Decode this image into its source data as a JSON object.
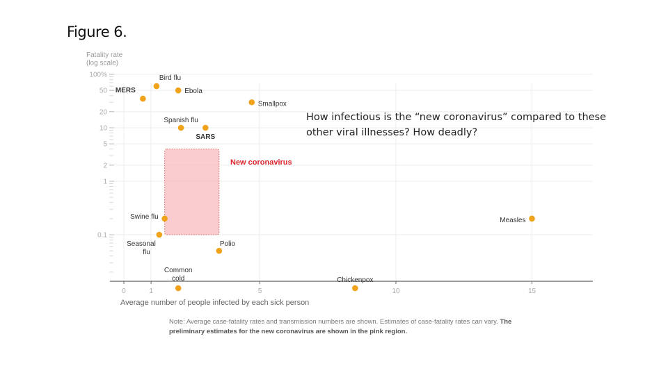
{
  "slide": {
    "title": "Figure 6.",
    "question": "How infectious is the “new coronavirus” compared to these other viral illnesses?  How deadly?"
  },
  "note": {
    "regular": "Note: Average case-fatality rates and transmission numbers are shown. Estimates of case-fatality rates can vary.",
    "bold": "The preliminary estimates for the new coronavirus are shown in the pink region."
  },
  "colors": {
    "point": "#f0a21a",
    "region_fill": "#f6b8bb",
    "region_stroke": "#e06060",
    "highlight_text": "#d9252b",
    "grid": "#ececec",
    "axis": "#666666"
  },
  "chart_data": {
    "type": "scatter",
    "title": "",
    "ylabel_lines": [
      "Fatality rate",
      "(log scale)"
    ],
    "xlabel": "Average number of people infected by each sick person",
    "y_scale": "log",
    "xlim": [
      0,
      17
    ],
    "ylim": [
      0.01,
      100
    ],
    "x_ticks": [
      "0",
      "1",
      "5",
      "10",
      "15"
    ],
    "x_tick_values": [
      0,
      1,
      5,
      10,
      15
    ],
    "y_ticks": [
      "100%",
      "50",
      "20",
      "10",
      "5",
      "2",
      "1",
      "0.1"
    ],
    "y_tick_values": [
      100,
      50,
      20,
      10,
      5,
      2,
      1,
      0.1
    ],
    "grid": true,
    "points": [
      {
        "name": "Bird flu",
        "x": 1.2,
        "y": 60,
        "bold": false
      },
      {
        "name": "MERS",
        "x": 0.7,
        "y": 35,
        "bold": true
      },
      {
        "name": "Ebola",
        "x": 2.0,
        "y": 50,
        "bold": false
      },
      {
        "name": "Smallpox",
        "x": 4.7,
        "y": 30,
        "bold": false
      },
      {
        "name": "Spanish flu",
        "x": 2.1,
        "y": 10,
        "bold": false
      },
      {
        "name": "SARS",
        "x": 3.0,
        "y": 10,
        "bold": true
      },
      {
        "name": "Swine flu",
        "x": 1.5,
        "y": 0.2,
        "bold": false
      },
      {
        "name": "Seasonal flu",
        "x": 1.3,
        "y": 0.1,
        "bold": false
      },
      {
        "name": "Polio",
        "x": 3.5,
        "y": 0.05,
        "bold": false
      },
      {
        "name": "Common cold",
        "x": 2.0,
        "y": 0.01,
        "bold": false
      },
      {
        "name": "Chickenpox",
        "x": 8.5,
        "y": 0.01,
        "bold": false
      },
      {
        "name": "Measles",
        "x": 15.0,
        "y": 0.2,
        "bold": false
      }
    ],
    "region": {
      "name": "New coronavirus",
      "x_range": [
        1.5,
        3.5
      ],
      "y_range": [
        0.1,
        4
      ]
    }
  }
}
